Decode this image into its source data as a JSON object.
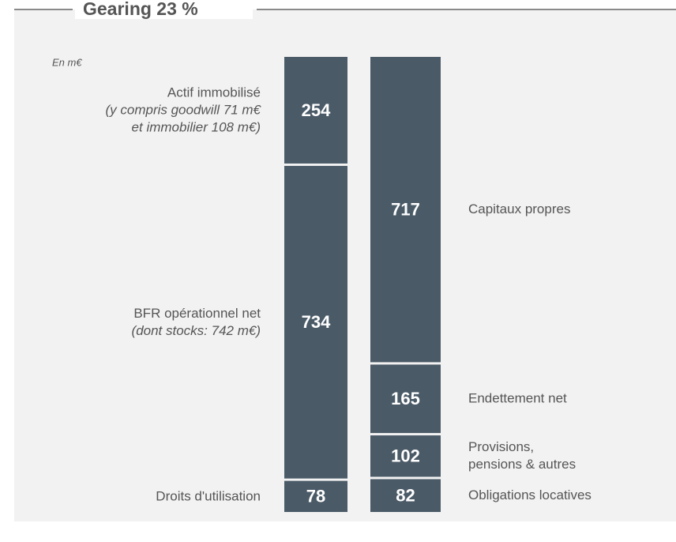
{
  "chart_data": {
    "type": "stacked_columns",
    "title": "Gearing 23 %",
    "unit": "En m€",
    "color": "#4a5a67",
    "columns": [
      {
        "segments": [
          {
            "value": 254,
            "label": [
              "Actif immobilisé"
            ],
            "note": [
              "(y compris goodwill 71 m€",
              "et immobilier 108 m€)"
            ]
          },
          {
            "value": 734,
            "label": [
              "BFR opérationnel net"
            ],
            "note": [
              "(dont stocks: 742 m€)"
            ]
          },
          {
            "value": 78,
            "label": [
              "Droits d'utilisation"
            ]
          }
        ]
      },
      {
        "segments": [
          {
            "value": 717,
            "label": [
              "Capitaux propres"
            ]
          },
          {
            "value": 165,
            "label": [
              "Endettement net"
            ]
          },
          {
            "value": 102,
            "label": [
              "Provisions,",
              "pensions & autres"
            ]
          },
          {
            "value": 82,
            "label": [
              "Obligations locatives"
            ]
          }
        ]
      }
    ]
  }
}
